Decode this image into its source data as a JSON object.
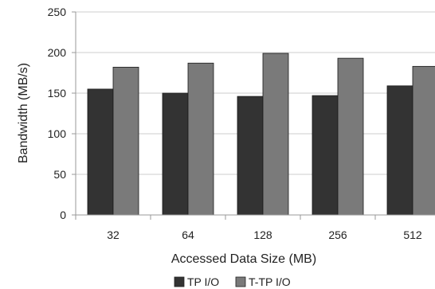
{
  "chart_data": {
    "type": "bar",
    "categories": [
      "32",
      "64",
      "128",
      "256",
      "512"
    ],
    "series": [
      {
        "name": "TP I/O",
        "values": [
          155,
          150,
          146,
          147,
          159
        ],
        "color": "#333333"
      },
      {
        "name": "T-TP I/O",
        "values": [
          182,
          187,
          199,
          193,
          183
        ],
        "color": "#7a7a7a"
      }
    ],
    "xlabel": "Accessed Data Size (MB)",
    "ylabel": "Bandwidth (MB/s)",
    "ylim": [
      0,
      250
    ],
    "yticks": [
      0,
      50,
      100,
      150,
      200,
      250
    ],
    "grid": true,
    "legend_position": "bottom-center"
  }
}
